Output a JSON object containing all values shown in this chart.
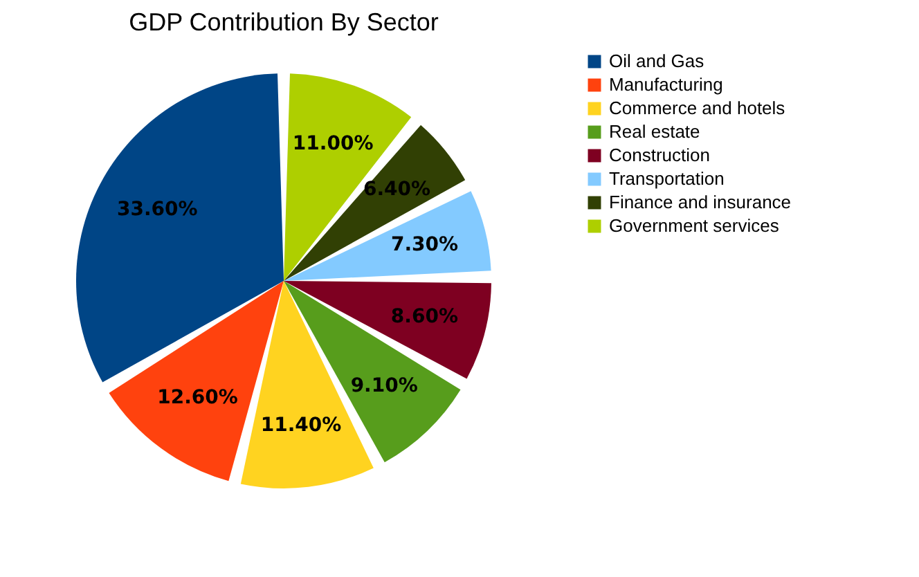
{
  "chart_data": {
    "type": "pie",
    "title": "GDP Contribution By Sector",
    "categories": [
      "Oil and Gas",
      "Manufacturing",
      "Commerce and hotels",
      "Real estate",
      "Construction",
      "Transportation",
      "Finance and insurance",
      "Government services"
    ],
    "values": [
      33.6,
      12.6,
      11.4,
      9.1,
      8.6,
      7.3,
      6.4,
      11.0
    ],
    "colors": [
      "#004586",
      "#ff420e",
      "#ffd320",
      "#579d1c",
      "#7e0021",
      "#83caff",
      "#314004",
      "#aecf00"
    ],
    "value_labels": [
      "33.60%",
      "12.60%",
      "11.40%",
      "9.10%",
      "8.60%",
      "7.30%",
      "6.40%",
      "11.00%"
    ],
    "legend": "right"
  }
}
